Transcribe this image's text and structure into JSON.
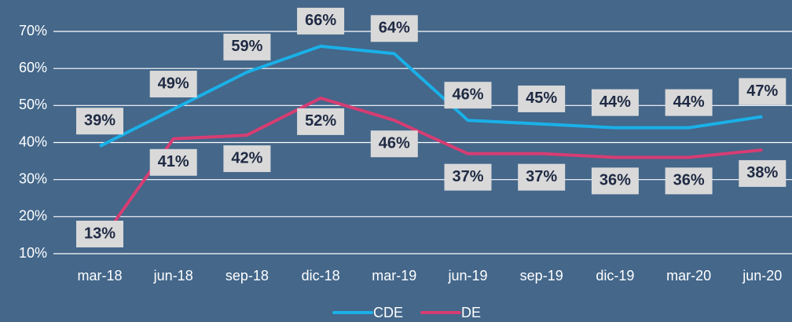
{
  "chart_data": {
    "type": "line",
    "categories": [
      "mar-18",
      "jun-18",
      "sep-18",
      "dic-18",
      "mar-19",
      "jun-19",
      "sep-19",
      "dic-19",
      "mar-20",
      "jun-20"
    ],
    "series": [
      {
        "name": "CDE",
        "color": "#1ab0e8",
        "values": [
          39,
          49,
          59,
          66,
          64,
          46,
          45,
          44,
          44,
          47
        ],
        "value_labels": [
          "39%",
          "49%",
          "59%",
          "66%",
          "64%",
          "46%",
          "45%",
          "44%",
          "44%",
          "47%"
        ]
      },
      {
        "name": "DE",
        "color": "#d63d73",
        "values": [
          13,
          41,
          42,
          52,
          46,
          37,
          37,
          36,
          36,
          38
        ],
        "value_labels": [
          "13%",
          "41%",
          "42%",
          "52%",
          "46%",
          "37%",
          "37%",
          "36%",
          "36%",
          "38%"
        ]
      }
    ],
    "ylim": [
      10,
      70
    ],
    "yticks": [
      {
        "value": 10,
        "label": "10%"
      },
      {
        "value": 20,
        "label": "20%"
      },
      {
        "value": 30,
        "label": "30%"
      },
      {
        "value": 40,
        "label": "40%"
      },
      {
        "value": 50,
        "label": "50%"
      },
      {
        "value": 60,
        "label": "60%"
      },
      {
        "value": 70,
        "label": "70%"
      }
    ],
    "grid": true,
    "legend": "bottom"
  }
}
